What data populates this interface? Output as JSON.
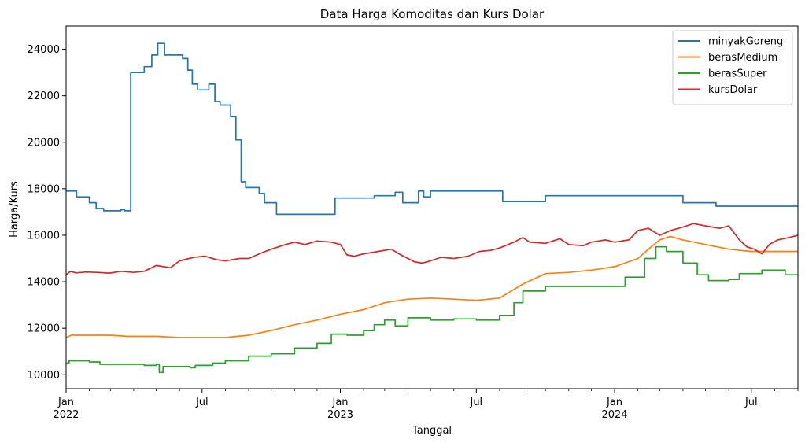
{
  "chart_data": {
    "type": "line",
    "title": "Data Harga Komoditas dan Kurs Dolar",
    "xlabel": "Tanggal",
    "ylabel": "Harga/Kurs",
    "xlim": [
      "2022-01-01",
      "2024-09-01"
    ],
    "ylim": [
      9400,
      25000
    ],
    "grid": false,
    "legend_position": "top-right",
    "x_ticks": [
      {
        "date": "2022-01-01",
        "label": "Jan",
        "year": "2022"
      },
      {
        "date": "2022-07-01",
        "label": "Jul",
        "year": ""
      },
      {
        "date": "2023-01-01",
        "label": "Jan",
        "year": "2023"
      },
      {
        "date": "2023-07-01",
        "label": "Jul",
        "year": ""
      },
      {
        "date": "2024-01-01",
        "label": "Jan",
        "year": "2024"
      },
      {
        "date": "2024-07-01",
        "label": "Jul",
        "year": ""
      }
    ],
    "y_ticks": [
      10000,
      12000,
      14000,
      16000,
      18000,
      20000,
      22000,
      24000
    ],
    "series": [
      {
        "name": "minyakGoreng",
        "color": "#1f77b4",
        "step": true,
        "points": [
          [
            "2022-01-01",
            17900
          ],
          [
            "2022-01-15",
            17650
          ],
          [
            "2022-02-01",
            17400
          ],
          [
            "2022-02-10",
            17150
          ],
          [
            "2022-02-20",
            17050
          ],
          [
            "2022-03-15",
            17100
          ],
          [
            "2022-03-20",
            17050
          ],
          [
            "2022-03-28",
            23000
          ],
          [
            "2022-04-15",
            23250
          ],
          [
            "2022-04-25",
            23750
          ],
          [
            "2022-05-03",
            24250
          ],
          [
            "2022-05-12",
            23750
          ],
          [
            "2022-06-05",
            23600
          ],
          [
            "2022-06-12",
            23100
          ],
          [
            "2022-06-18",
            22500
          ],
          [
            "2022-06-25",
            22250
          ],
          [
            "2022-07-10",
            22500
          ],
          [
            "2022-07-18",
            21750
          ],
          [
            "2022-07-25",
            21600
          ],
          [
            "2022-08-08",
            21100
          ],
          [
            "2022-08-15",
            20100
          ],
          [
            "2022-08-22",
            18300
          ],
          [
            "2022-08-28",
            18050
          ],
          [
            "2022-09-15",
            17800
          ],
          [
            "2022-09-22",
            17400
          ],
          [
            "2022-10-08",
            16900
          ],
          [
            "2022-12-25",
            17600
          ],
          [
            "2023-02-15",
            17700
          ],
          [
            "2023-03-15",
            17850
          ],
          [
            "2023-03-25",
            17400
          ],
          [
            "2023-04-15",
            17900
          ],
          [
            "2023-04-22",
            17650
          ],
          [
            "2023-05-01",
            17900
          ],
          [
            "2023-08-05",
            17450
          ],
          [
            "2023-10-01",
            17700
          ],
          [
            "2024-01-15",
            17700
          ],
          [
            "2024-04-01",
            17400
          ],
          [
            "2024-05-15",
            17250
          ],
          [
            "2024-09-01",
            17250
          ]
        ]
      },
      {
        "name": "berasMedium",
        "color": "#ff7f0e",
        "step": false,
        "points": [
          [
            "2022-01-01",
            11600
          ],
          [
            "2022-01-08",
            11700
          ],
          [
            "2022-02-01",
            11700
          ],
          [
            "2022-03-01",
            11700
          ],
          [
            "2022-03-25",
            11650
          ],
          [
            "2022-04-15",
            11650
          ],
          [
            "2022-05-01",
            11650
          ],
          [
            "2022-06-01",
            11600
          ],
          [
            "2022-07-01",
            11600
          ],
          [
            "2022-08-01",
            11600
          ],
          [
            "2022-09-01",
            11700
          ],
          [
            "2022-10-01",
            11900
          ],
          [
            "2022-11-01",
            12150
          ],
          [
            "2022-12-01",
            12350
          ],
          [
            "2023-01-01",
            12600
          ],
          [
            "2023-02-01",
            12800
          ],
          [
            "2023-03-01",
            13100
          ],
          [
            "2023-04-01",
            13250
          ],
          [
            "2023-05-01",
            13300
          ],
          [
            "2023-06-01",
            13250
          ],
          [
            "2023-07-01",
            13200
          ],
          [
            "2023-08-01",
            13300
          ],
          [
            "2023-09-01",
            13900
          ],
          [
            "2023-10-01",
            14350
          ],
          [
            "2023-11-01",
            14400
          ],
          [
            "2023-12-01",
            14500
          ],
          [
            "2024-01-01",
            14650
          ],
          [
            "2024-02-01",
            15000
          ],
          [
            "2024-02-15",
            15400
          ],
          [
            "2024-03-01",
            15800
          ],
          [
            "2024-03-15",
            15950
          ],
          [
            "2024-04-01",
            15800
          ],
          [
            "2024-05-01",
            15600
          ],
          [
            "2024-06-01",
            15400
          ],
          [
            "2024-07-01",
            15300
          ],
          [
            "2024-09-01",
            15300
          ]
        ]
      },
      {
        "name": "berasSuper",
        "color": "#2ca02c",
        "step": true,
        "points": [
          [
            "2022-01-01",
            10500
          ],
          [
            "2022-01-05",
            10600
          ],
          [
            "2022-02-01",
            10550
          ],
          [
            "2022-02-15",
            10450
          ],
          [
            "2022-04-15",
            10400
          ],
          [
            "2022-05-01",
            10450
          ],
          [
            "2022-05-05",
            10100
          ],
          [
            "2022-05-10",
            10350
          ],
          [
            "2022-06-15",
            10300
          ],
          [
            "2022-06-22",
            10400
          ],
          [
            "2022-07-15",
            10500
          ],
          [
            "2022-08-01",
            10600
          ],
          [
            "2022-09-01",
            10800
          ],
          [
            "2022-10-01",
            10900
          ],
          [
            "2022-11-01",
            11150
          ],
          [
            "2022-12-01",
            11350
          ],
          [
            "2022-12-20",
            11750
          ],
          [
            "2023-01-10",
            11700
          ],
          [
            "2023-02-01",
            11900
          ],
          [
            "2023-02-15",
            12150
          ],
          [
            "2023-03-01",
            12350
          ],
          [
            "2023-03-15",
            12100
          ],
          [
            "2023-04-01",
            12450
          ],
          [
            "2023-05-01",
            12350
          ],
          [
            "2023-06-01",
            12400
          ],
          [
            "2023-07-01",
            12350
          ],
          [
            "2023-08-01",
            12550
          ],
          [
            "2023-08-20",
            13100
          ],
          [
            "2023-09-01",
            13600
          ],
          [
            "2023-10-01",
            13800
          ],
          [
            "2023-11-01",
            13800
          ],
          [
            "2023-12-15",
            13800
          ],
          [
            "2024-01-15",
            14200
          ],
          [
            "2024-02-10",
            15000
          ],
          [
            "2024-02-25",
            15500
          ],
          [
            "2024-03-10",
            15300
          ],
          [
            "2024-04-01",
            14800
          ],
          [
            "2024-04-20",
            14300
          ],
          [
            "2024-05-05",
            14050
          ],
          [
            "2024-06-01",
            14100
          ],
          [
            "2024-06-15",
            14350
          ],
          [
            "2024-07-15",
            14500
          ],
          [
            "2024-08-15",
            14300
          ],
          [
            "2024-09-01",
            14300
          ]
        ]
      },
      {
        "name": "kursDolar",
        "color": "#d62728",
        "step": false,
        "points": [
          [
            "2022-01-01",
            14300
          ],
          [
            "2022-01-07",
            14450
          ],
          [
            "2022-01-14",
            14380
          ],
          [
            "2022-01-28",
            14420
          ],
          [
            "2022-02-10",
            14400
          ],
          [
            "2022-02-28",
            14370
          ],
          [
            "2022-03-15",
            14450
          ],
          [
            "2022-04-01",
            14400
          ],
          [
            "2022-04-15",
            14450
          ],
          [
            "2022-05-01",
            14700
          ],
          [
            "2022-05-20",
            14600
          ],
          [
            "2022-06-01",
            14900
          ],
          [
            "2022-06-20",
            15050
          ],
          [
            "2022-07-05",
            15100
          ],
          [
            "2022-07-20",
            14950
          ],
          [
            "2022-08-01",
            14900
          ],
          [
            "2022-08-20",
            15000
          ],
          [
            "2022-09-01",
            15000
          ],
          [
            "2022-09-15",
            15200
          ],
          [
            "2022-10-01",
            15400
          ],
          [
            "2022-10-20",
            15600
          ],
          [
            "2022-11-01",
            15700
          ],
          [
            "2022-11-15",
            15600
          ],
          [
            "2022-12-01",
            15750
          ],
          [
            "2022-12-20",
            15700
          ],
          [
            "2023-01-01",
            15600
          ],
          [
            "2023-01-10",
            15150
          ],
          [
            "2023-01-20",
            15100
          ],
          [
            "2023-02-01",
            15200
          ],
          [
            "2023-02-20",
            15300
          ],
          [
            "2023-03-10",
            15400
          ],
          [
            "2023-03-20",
            15200
          ],
          [
            "2023-04-01",
            15000
          ],
          [
            "2023-04-10",
            14850
          ],
          [
            "2023-04-20",
            14800
          ],
          [
            "2023-05-01",
            14900
          ],
          [
            "2023-05-15",
            15050
          ],
          [
            "2023-06-01",
            15000
          ],
          [
            "2023-06-20",
            15100
          ],
          [
            "2023-07-05",
            15300
          ],
          [
            "2023-07-20",
            15350
          ],
          [
            "2023-08-01",
            15450
          ],
          [
            "2023-08-20",
            15700
          ],
          [
            "2023-09-01",
            15900
          ],
          [
            "2023-09-10",
            15700
          ],
          [
            "2023-10-01",
            15650
          ],
          [
            "2023-10-20",
            15850
          ],
          [
            "2023-11-01",
            15600
          ],
          [
            "2023-11-20",
            15550
          ],
          [
            "2023-12-01",
            15700
          ],
          [
            "2023-12-20",
            15800
          ],
          [
            "2024-01-01",
            15700
          ],
          [
            "2024-01-20",
            15800
          ],
          [
            "2024-02-01",
            16200
          ],
          [
            "2024-02-15",
            16300
          ],
          [
            "2024-03-01",
            16000
          ],
          [
            "2024-03-15",
            16200
          ],
          [
            "2024-04-01",
            16350
          ],
          [
            "2024-04-15",
            16500
          ],
          [
            "2024-05-01",
            16400
          ],
          [
            "2024-05-20",
            16300
          ],
          [
            "2024-06-01",
            16400
          ],
          [
            "2024-06-15",
            15800
          ],
          [
            "2024-06-25",
            15500
          ],
          [
            "2024-07-05",
            15400
          ],
          [
            "2024-07-15",
            15200
          ],
          [
            "2024-07-25",
            15600
          ],
          [
            "2024-08-05",
            15800
          ],
          [
            "2024-08-20",
            15900
          ],
          [
            "2024-09-01",
            16000
          ]
        ]
      }
    ]
  }
}
